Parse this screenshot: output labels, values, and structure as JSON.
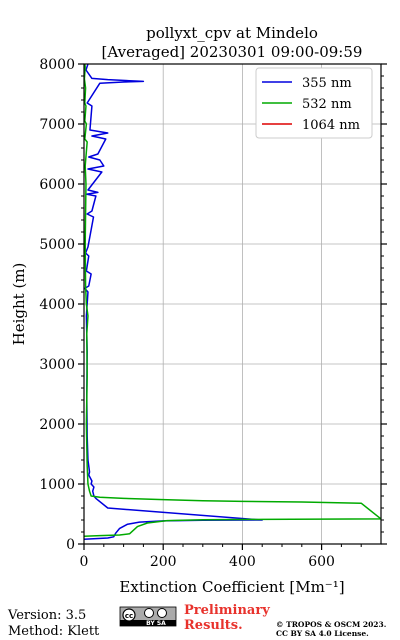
{
  "chart_data": {
    "type": "line",
    "title_line1": "pollyxt_cpv at Mindelo",
    "title_line2": "[Averaged] 20230301 09:00-09:59",
    "xlabel": "Extinction Coefficient [Mm⁻¹]",
    "ylabel": "Height (m)",
    "xlim": [
      0,
      750
    ],
    "ylim": [
      0,
      8000
    ],
    "x_ticks": [
      0,
      200,
      400,
      600
    ],
    "y_ticks": [
      0,
      1000,
      2000,
      3000,
      4000,
      5000,
      6000,
      7000,
      8000
    ],
    "grid": true,
    "legend_position": "top-right",
    "series": [
      {
        "name": "355 nm",
        "color": "#0000dd",
        "points": [
          [
            0,
            80
          ],
          [
            30,
            90
          ],
          [
            60,
            100
          ],
          [
            75,
            120
          ],
          [
            80,
            180
          ],
          [
            90,
            260
          ],
          [
            110,
            330
          ],
          [
            140,
            365
          ],
          [
            200,
            385
          ],
          [
            300,
            395
          ],
          [
            450,
            400
          ],
          [
            60,
            600
          ],
          [
            30,
            760
          ],
          [
            25,
            800
          ],
          [
            22,
            880
          ],
          [
            25,
            950
          ],
          [
            18,
            1000
          ],
          [
            20,
            1050
          ],
          [
            12,
            1150
          ],
          [
            14,
            1200
          ],
          [
            10,
            1400
          ],
          [
            8,
            1800
          ],
          [
            7,
            2500
          ],
          [
            8,
            3200
          ],
          [
            6,
            3800
          ],
          [
            8,
            4000
          ],
          [
            10,
            4200
          ],
          [
            2,
            4260
          ],
          [
            12,
            4300
          ],
          [
            18,
            4500
          ],
          [
            6,
            4550
          ],
          [
            12,
            4800
          ],
          [
            4,
            4850
          ],
          [
            10,
            4950
          ],
          [
            24,
            5450
          ],
          [
            8,
            5500
          ],
          [
            20,
            5550
          ],
          [
            30,
            5800
          ],
          [
            6,
            5830
          ],
          [
            35,
            5860
          ],
          [
            10,
            5900
          ],
          [
            45,
            6200
          ],
          [
            10,
            6250
          ],
          [
            50,
            6300
          ],
          [
            40,
            6400
          ],
          [
            12,
            6450
          ],
          [
            35,
            6500
          ],
          [
            55,
            6750
          ],
          [
            20,
            6800
          ],
          [
            60,
            6850
          ],
          [
            15,
            6900
          ],
          [
            20,
            7300
          ],
          [
            8,
            7350
          ],
          [
            40,
            7680
          ],
          [
            100,
            7700
          ],
          [
            150,
            7710
          ],
          [
            60,
            7740
          ],
          [
            20,
            7760
          ],
          [
            5,
            7900
          ],
          [
            10,
            8000
          ]
        ]
      },
      {
        "name": "532 nm",
        "color": "#00aa00",
        "points": [
          [
            0,
            130
          ],
          [
            40,
            140
          ],
          [
            90,
            150
          ],
          [
            115,
            170
          ],
          [
            125,
            230
          ],
          [
            135,
            290
          ],
          [
            160,
            350
          ],
          [
            210,
            390
          ],
          [
            300,
            405
          ],
          [
            450,
            410
          ],
          [
            600,
            415
          ],
          [
            750,
            418
          ],
          [
            700,
            680
          ],
          [
            550,
            700
          ],
          [
            400,
            710
          ],
          [
            300,
            720
          ],
          [
            200,
            740
          ],
          [
            100,
            760
          ],
          [
            40,
            780
          ],
          [
            18,
            800
          ],
          [
            14,
            880
          ],
          [
            10,
            1000
          ],
          [
            8,
            1300
          ],
          [
            6,
            2000
          ],
          [
            8,
            2800
          ],
          [
            7,
            3500
          ],
          [
            10,
            3800
          ],
          [
            6,
            4000
          ],
          [
            4,
            4300
          ],
          [
            3,
            5000
          ],
          [
            4,
            5500
          ],
          [
            5,
            6000
          ],
          [
            3,
            6300
          ],
          [
            8,
            6700
          ],
          [
            2,
            6750
          ],
          [
            6,
            7000
          ],
          [
            2,
            7050
          ],
          [
            5,
            7300
          ],
          [
            2,
            7350
          ],
          [
            4,
            7600
          ],
          [
            1,
            7750
          ],
          [
            3,
            7950
          ],
          [
            2,
            8000
          ]
        ]
      },
      {
        "name": "1064 nm",
        "color": "#dd0000",
        "points": []
      }
    ]
  },
  "footer": {
    "version": "Version: 3.5",
    "method": "Method: Klett",
    "preliminary_line1": "Preliminary",
    "preliminary_line2": "Results.",
    "copyright_line1": "© TROPOS & OSCM 2023.",
    "copyright_line2": "CC BY SA 4.0 License.",
    "cc_badge_text": "BY   SA"
  }
}
